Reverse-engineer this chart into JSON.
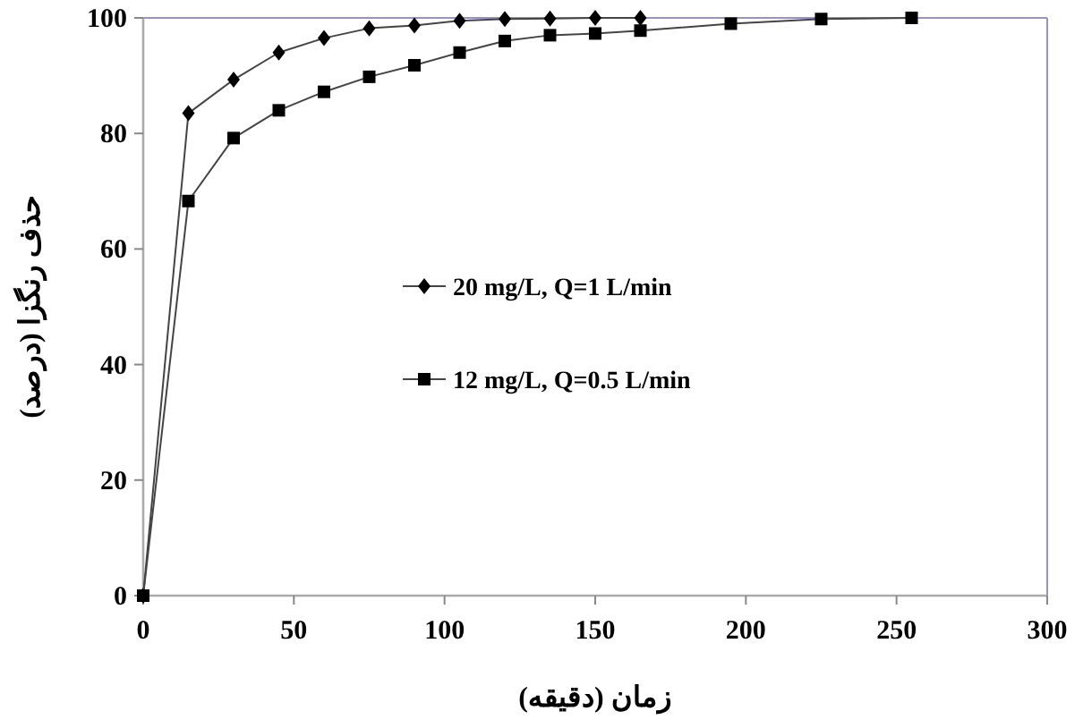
{
  "chart_data": {
    "type": "line",
    "xlabel": "زمان (دقیقه)",
    "ylabel": "حذف رنگزا (درصد)",
    "xlim": [
      0,
      300
    ],
    "xticks": [
      0,
      50,
      100,
      150,
      200,
      250,
      300
    ],
    "ylim": [
      0,
      100
    ],
    "yticks": [
      0,
      20,
      40,
      60,
      80,
      100
    ],
    "grid": false,
    "legend": "center",
    "series": [
      {
        "name": "20 mg/L, Q=1 L/min",
        "color": "#000000",
        "marker": "diamond",
        "x": [
          0,
          15,
          30,
          45,
          60,
          75,
          90,
          105,
          120,
          135,
          150,
          165
        ],
        "values": [
          0,
          83.5,
          89.3,
          94,
          96.5,
          98.2,
          98.7,
          99.5,
          99.8,
          99.9,
          100,
          100
        ]
      },
      {
        "name": "12 mg/L, Q=0.5 L/min",
        "color": "#000000",
        "marker": "square",
        "x": [
          0,
          15,
          30,
          45,
          60,
          75,
          90,
          105,
          120,
          135,
          150,
          165,
          195,
          225,
          255
        ],
        "values": [
          0,
          68.3,
          79.2,
          84,
          87.2,
          89.8,
          91.8,
          94,
          96,
          97,
          97.3,
          97.8,
          99,
          99.8,
          100
        ]
      }
    ]
  }
}
